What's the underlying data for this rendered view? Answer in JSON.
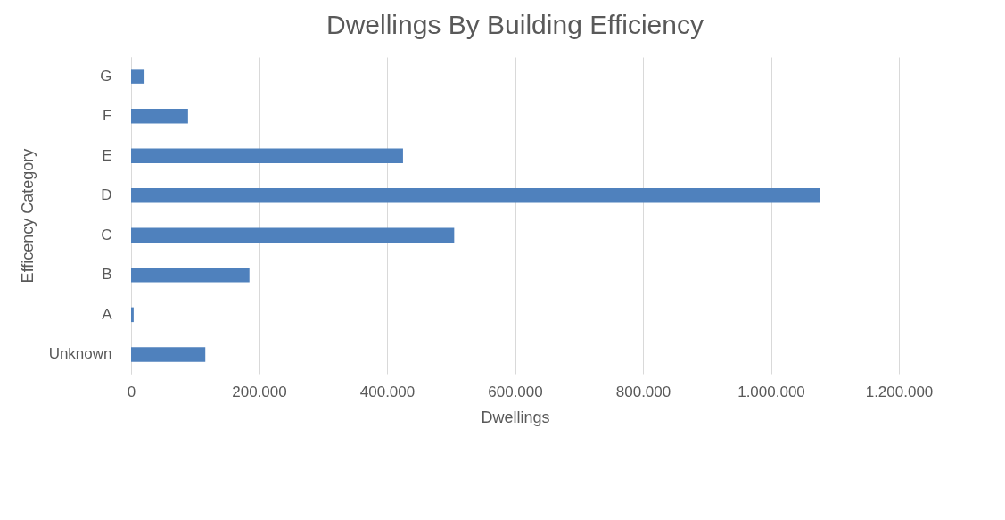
{
  "chart_data": {
    "type": "bar",
    "orientation": "horizontal",
    "title": "Dwellings By Building Efficiency",
    "xlabel": "Dwellings",
    "ylabel": "Efficency Category",
    "categories": [
      "G",
      "F",
      "E",
      "D",
      "C",
      "B",
      "A",
      "Unknown"
    ],
    "values": [
      21000,
      89000,
      425000,
      1077000,
      505000,
      185000,
      4000,
      116000
    ],
    "color": "#4f81bd",
    "xlim": [
      0,
      1200000
    ],
    "xticks": [
      0,
      {
        "value": 200000,
        "label": "200.000"
      },
      {
        "value": 400000,
        "label": "400.000"
      },
      {
        "value": 600000,
        "label": "600.000"
      },
      {
        "value": 800000,
        "label": "800.000"
      },
      {
        "value": 1000000,
        "label": "1.000.000"
      },
      {
        "value": 1200000,
        "label": "1.200.000"
      }
    ],
    "grid": "x"
  }
}
